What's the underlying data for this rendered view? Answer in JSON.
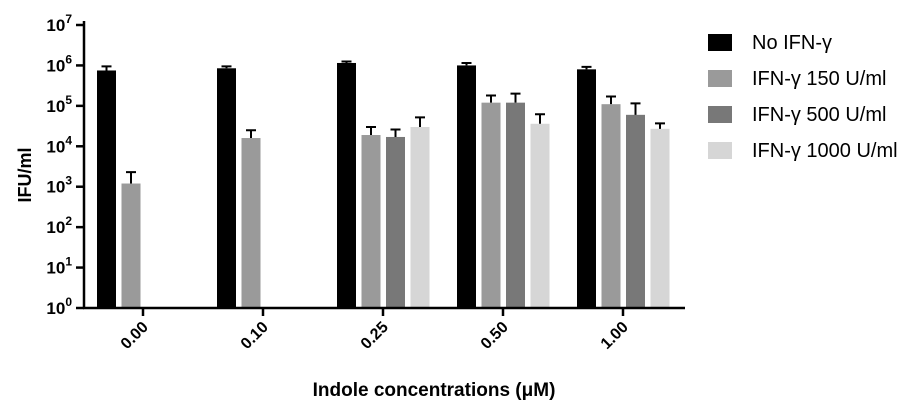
{
  "chart_data": {
    "type": "bar",
    "ylabel": "IFU/ml",
    "xlabel": "Indole concentrations (μM)",
    "yscale": "log",
    "ylim": [
      1,
      10000000
    ],
    "y_ticks": [
      {
        "base": "10",
        "exp": "0",
        "value": 1
      },
      {
        "base": "10",
        "exp": "1",
        "value": 10
      },
      {
        "base": "10",
        "exp": "2",
        "value": 100
      },
      {
        "base": "10",
        "exp": "3",
        "value": 1000
      },
      {
        "base": "10",
        "exp": "4",
        "value": 10000
      },
      {
        "base": "10",
        "exp": "5",
        "value": 100000
      },
      {
        "base": "10",
        "exp": "6",
        "value": 1000000
      },
      {
        "base": "10",
        "exp": "7",
        "value": 10000000
      }
    ],
    "categories": [
      "0.00",
      "0.10",
      "0.25",
      "0.50",
      "1.00"
    ],
    "legend_position": "right",
    "grid": false,
    "series": [
      {
        "name": "No IFN-γ",
        "color": "#000000",
        "values": [
          750000,
          850000,
          1150000,
          1000000,
          800000
        ],
        "errors": [
          950000,
          950000,
          1250000,
          1150000,
          920000
        ]
      },
      {
        "name": "IFN-γ 150 U/ml",
        "color": "#9a9a9a",
        "values": [
          1200,
          16000,
          19000,
          120000,
          110000
        ],
        "errors": [
          2300,
          25000,
          30000,
          180000,
          170000
        ]
      },
      {
        "name": "IFN-γ 500 U/ml",
        "color": "#787878",
        "values": [
          null,
          null,
          17000,
          120000,
          60000
        ],
        "errors": [
          null,
          null,
          26000,
          200000,
          115000
        ]
      },
      {
        "name": "IFN-γ 1000 U/ml",
        "color": "#d6d6d6",
        "values": [
          null,
          null,
          30000,
          36000,
          27000
        ],
        "errors": [
          null,
          null,
          52000,
          62000,
          37000
        ]
      }
    ]
  }
}
